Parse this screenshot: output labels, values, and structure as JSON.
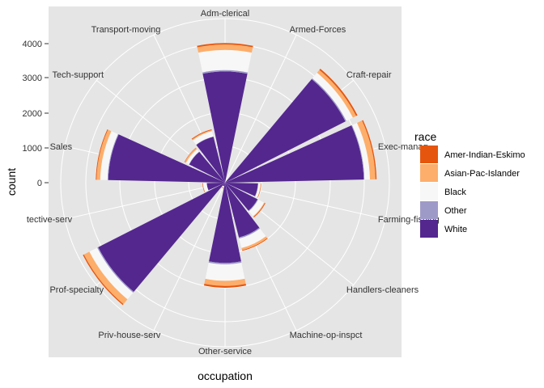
{
  "chart_data": {
    "type": "bar",
    "coord": "polar",
    "xlabel": "occupation",
    "ylabel": "count",
    "ylim": [
      0,
      4500
    ],
    "y_ticks": [
      0,
      1000,
      2000,
      3000,
      4000
    ],
    "grid": true,
    "legend_position": "right",
    "legend_title": "race",
    "categories": [
      "Adm-clerical",
      "Armed-Forces",
      "Craft-repair",
      "Exec-managerial",
      "Farming-fishing",
      "Handlers-cleaners",
      "Machine-op-inspct",
      "Other-service",
      "Priv-house-serv",
      "Prof-specialty",
      "Protective-serv",
      "Sales",
      "Tech-support",
      "Transport-moving"
    ],
    "category_labels": [
      "Adm-clerical",
      "Armed-Forces",
      "Craft-repair",
      "Exec-manag",
      "Farming-fishing",
      "Handlers-cleaners",
      "Machine-op-inspct",
      "Other-service",
      "Priv-house-serv",
      "Prof-specialty",
      "tective-serv",
      "Sales",
      "Tech-support",
      "Transport-moving"
    ],
    "series": [
      {
        "name": "White",
        "color": "#54278f",
        "values": [
          3050,
          0,
          3700,
          3800,
          900,
          1000,
          1550,
          2200,
          100,
          3900,
          500,
          3200,
          1100,
          1300
        ]
      },
      {
        "name": "Other",
        "color": "#9e9ac8",
        "values": [
          40,
          0,
          30,
          20,
          10,
          20,
          30,
          40,
          0,
          30,
          0,
          20,
          10,
          10
        ]
      },
      {
        "name": "Black",
        "color": "#f7f7f7",
        "values": [
          550,
          0,
          200,
          150,
          60,
          180,
          270,
          450,
          40,
          240,
          100,
          200,
          90,
          150
        ]
      },
      {
        "name": "Asian-Pac-Islander",
        "color": "#fdae6b",
        "values": [
          150,
          0,
          100,
          150,
          10,
          20,
          60,
          140,
          10,
          170,
          10,
          100,
          40,
          30
        ]
      },
      {
        "name": "Amer-Indian-Eskimo",
        "color": "#e6550d",
        "values": [
          40,
          0,
          40,
          30,
          10,
          20,
          20,
          50,
          10,
          30,
          10,
          20,
          10,
          20
        ]
      }
    ],
    "legend_order": [
      "Amer-Indian-Eskimo",
      "Asian-Pac-Islander",
      "Black",
      "Other",
      "White"
    ]
  }
}
